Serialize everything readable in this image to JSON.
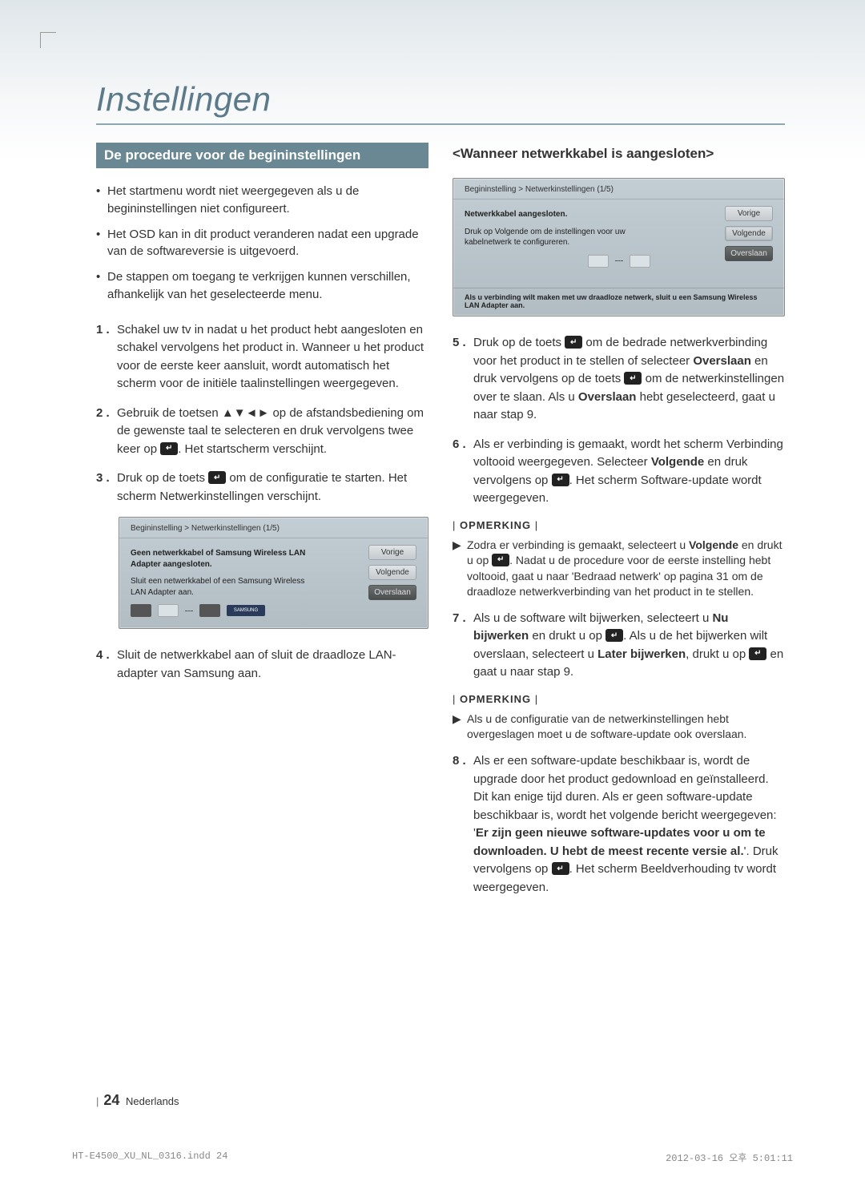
{
  "title": "Instellingen",
  "section_bar": "De procedure voor de begininstellingen",
  "subhead": "<Wanneer netwerkkabel is aangesloten>",
  "bullets": [
    "Het startmenu wordt niet weergegeven als u de begininstellingen niet configureert.",
    "Het OSD kan in dit product veranderen nadat een upgrade van de softwareversie is uitgevoerd.",
    "De stappen om toegang te verkrijgen kunnen verschillen, afhankelijk van het geselecteerde menu."
  ],
  "steps_left": [
    {
      "n": "1 .",
      "t": "Schakel uw tv in nadat u het product hebt aangesloten en schakel vervolgens het product in. Wanneer u het product voor de eerste keer aansluit, wordt automatisch het scherm voor de initiële taalinstellingen weergegeven."
    },
    {
      "n": "2 .",
      "t": "Gebruik de toetsen ▲▼◄► op de afstandsbediening om de gewenste taal te selecteren en druk vervolgens twee keer op ",
      "icon": true,
      "after": ". Het startscherm verschijnt."
    },
    {
      "n": "3 .",
      "t": "Druk op de toets ",
      "icon": true,
      "after": " om de configuratie te starten. Het scherm Netwerkinstellingen verschijnt."
    },
    {
      "n": "4 .",
      "t": "Sluit de netwerkkabel aan of sluit de draadloze LAN-adapter van Samsung aan."
    }
  ],
  "steps_right": [
    {
      "n": "5 .",
      "pre": "Druk op de toets ",
      "icon1": true,
      "mid": " om de bedrade netwerkverbinding voor het product in te stellen of selecteer ",
      "b1": "Overslaan",
      "mid2": " en druk vervolgens op de toets ",
      "icon2": true,
      "mid3": " om de netwerkinstellingen over te slaan. Als u ",
      "b2": "Overslaan",
      "after": " hebt geselecteerd, gaat u naar stap 9."
    },
    {
      "n": "6 .",
      "pre": "Als er verbinding is gemaakt, wordt het scherm Verbinding voltooid weergegeven. Selecteer ",
      "b1": "Volgende",
      "mid": " en druk vervolgens op ",
      "icon1": true,
      "after": ". Het scherm Software-update wordt weergegeven."
    },
    {
      "n": "7 .",
      "pre": "Als u de software wilt bijwerken, selecteert u ",
      "b1": "Nu bijwerken",
      "mid": " en drukt u op ",
      "icon1": true,
      "mid2": ". Als u de het bijwerken wilt overslaan, selecteert u ",
      "b2": "Later bijwerken",
      "mid3": ", drukt u op ",
      "icon2": true,
      "after": " en gaat u naar stap 9."
    },
    {
      "n": "8 .",
      "pre": "Als er een software-update beschikbaar is, wordt de upgrade door het product gedownload en geïnstalleerd. Dit kan enige tijd duren. Als er geen software-update beschikbaar is, wordt het volgende bericht weergegeven: '",
      "b1": "Er zijn geen nieuwe software-updates voor u om te downloaden. U hebt de meest recente versie al.",
      "mid": "'. Druk vervolgens op ",
      "icon1": true,
      "after": ". Het scherm Beeldverhouding tv wordt weergegeven."
    }
  ],
  "opm_label": "OPMERKING",
  "note1_pre": "Zodra er verbinding is gemaakt, selecteert u ",
  "note1_b": "Volgende",
  "note1_mid": " en drukt u op ",
  "note1_after": ". Nadat u de procedure voor de eerste instelling hebt voltooid, gaat u naar 'Bedraad netwerk' op pagina 31 om de draadloze netwerkverbinding van het product in te stellen.",
  "note2": "Als u de configuratie van de netwerkinstellingen hebt overgeslagen moet u de software-update ook overslaan.",
  "shot1": {
    "crumb": "Begininstelling > Netwerkinstellingen (1/5)",
    "msg1": "Geen netwerkkabel of Samsung Wireless LAN Adapter aangesloten.",
    "msg2": "Sluit een netwerkkabel of een Samsung Wireless LAN Adapter aan.",
    "btns": [
      "Vorige",
      "Volgende",
      "Overslaan"
    ],
    "samsung": "SAMSUNG"
  },
  "shot2": {
    "crumb": "Begininstelling > Netwerkinstellingen (1/5)",
    "msg1": "Netwerkkabel aangesloten.",
    "msg2": "Druk op Volgende om de instellingen voor uw kabelnetwerk te configureren.",
    "btns": [
      "Vorige",
      "Volgende",
      "Overslaan"
    ],
    "foot": "Als u verbinding wilt maken met uw draadloze netwerk, sluit u een Samsung Wireless LAN Adapter aan."
  },
  "footer": {
    "page": "24",
    "lang": "Nederlands"
  },
  "print": {
    "file": "HT-E4500_XU_NL_0316.indd   24",
    "ts": "2012-03-16   오후 5:01:11"
  }
}
